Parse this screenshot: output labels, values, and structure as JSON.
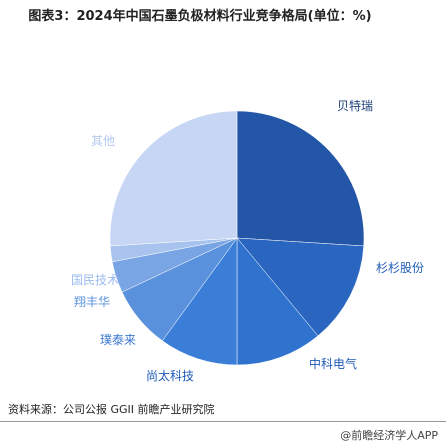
{
  "chart_data": {
    "type": "pie",
    "title": "图表3：2024年中国石墨负极材料行业竞争格局(单位：%)",
    "categories": [
      "贝特瑞",
      "杉杉股份",
      "中科电气",
      "尚太科技",
      "璞泰来",
      "翔丰华",
      "国民技术",
      "其他"
    ],
    "values": [
      26,
      13,
      11,
      10,
      8,
      4,
      2,
      26
    ],
    "colors": [
      "#2356a6",
      "#2a66bf",
      "#2f73cf",
      "#3b7ed8",
      "#5a91dd",
      "#7aa5e5",
      "#a8c3ee",
      "#c6d6f4"
    ],
    "source": "资料来源：公司公报 GGII 前瞻产业研究院",
    "watermark": "@前瞻经济学人APP"
  }
}
